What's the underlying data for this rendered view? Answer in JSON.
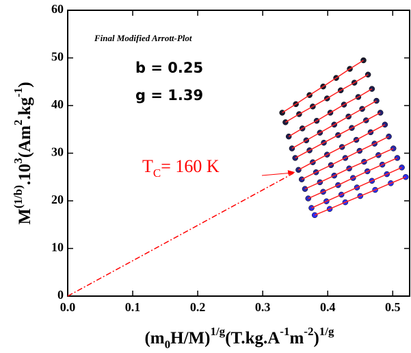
{
  "chart_data": {
    "type": "scatter",
    "title": "Final Modified Arrott-Plot",
    "annotations": [
      "b = 0.25",
      "g = 1.39"
    ],
    "xlabel": [
      {
        "text": "(m"
      },
      {
        "text": "0",
        "sub": true
      },
      {
        "text": "H/M)"
      },
      {
        "text": "1/g",
        "sup": true
      },
      {
        "text": "(T.kg.A"
      },
      {
        "text": "-1",
        "sup": true
      },
      {
        "text": "m"
      },
      {
        "text": "-2",
        "sup": true
      },
      {
        "text": ")"
      },
      {
        "text": "1/g",
        "sup": true
      }
    ],
    "ylabel": [
      {
        "text": "M"
      },
      {
        "text": "(1/b)",
        "sup": true
      },
      {
        "text": ".10"
      },
      {
        "text": "3",
        "sup": true
      },
      {
        "text": "(Am"
      },
      {
        "text": "2",
        "sup": true
      },
      {
        "text": ".kg"
      },
      {
        "text": "-1",
        "sup": true
      },
      {
        "text": ")"
      }
    ],
    "xlim": [
      0,
      0.526
    ],
    "ylim": [
      0,
      60
    ],
    "xticks": [
      {
        "value": 0,
        "label": "0.0"
      },
      0.1,
      0.2,
      0.3,
      0.4,
      0.5
    ],
    "yticks": [
      0,
      10,
      20,
      30,
      40,
      50,
      60
    ],
    "fit_color": "#ff2020",
    "extrapolation": {
      "x": [
        0,
        0.35
      ],
      "y": [
        0,
        26
      ],
      "color": "#ff0000",
      "label": [
        {
          "text": "T"
        },
        {
          "text": "C",
          "sub": true
        },
        {
          "text": "= 160 K"
        }
      ]
    },
    "series": [
      {
        "color": "#1a1a2e",
        "x": [
          0.33,
          0.351,
          0.372,
          0.393,
          0.413,
          0.434,
          0.455
        ],
        "values": [
          38.5,
          40.3,
          42.2,
          44.0,
          45.8,
          47.7,
          49.5
        ]
      },
      {
        "color": "#1c1c3c",
        "x": [
          0.335,
          0.356,
          0.377,
          0.399,
          0.42,
          0.441,
          0.462
        ],
        "values": [
          36.5,
          38.2,
          39.8,
          41.5,
          43.2,
          44.8,
          46.5
        ]
      },
      {
        "color": "#1e1e4c",
        "x": [
          0.34,
          0.361,
          0.383,
          0.404,
          0.425,
          0.447,
          0.468
        ],
        "values": [
          33.5,
          35.2,
          36.8,
          38.5,
          40.2,
          41.8,
          43.5
        ]
      },
      {
        "color": "#20205c",
        "x": [
          0.345,
          0.367,
          0.388,
          0.41,
          0.432,
          0.453,
          0.475
        ],
        "values": [
          31,
          32.7,
          34.3,
          36,
          37.7,
          39.3,
          41
        ]
      },
      {
        "color": "#22226e",
        "x": [
          0.35,
          0.372,
          0.394,
          0.416,
          0.437,
          0.459,
          0.481
        ],
        "values": [
          29,
          30.6,
          32.2,
          33.8,
          35.3,
          36.9,
          38.5
        ]
      },
      {
        "color": "#242480",
        "x": [
          0.355,
          0.377,
          0.399,
          0.422,
          0.444,
          0.466,
          0.488
        ],
        "values": [
          26.5,
          28.1,
          29.7,
          31.3,
          32.8,
          34.4,
          36
        ]
      },
      {
        "color": "#262694",
        "x": [
          0.36,
          0.382,
          0.405,
          0.427,
          0.449,
          0.472,
          0.494
        ],
        "values": [
          24.5,
          26,
          27.5,
          29,
          30.5,
          32,
          33.5
        ]
      },
      {
        "color": "#2828aa",
        "x": [
          0.365,
          0.388,
          0.41,
          0.433,
          0.456,
          0.478,
          0.501
        ],
        "values": [
          22.5,
          23.9,
          25.3,
          26.8,
          28.2,
          29.6,
          31
        ]
      },
      {
        "color": "#2a2ac0",
        "x": [
          0.37,
          0.393,
          0.416,
          0.439,
          0.461,
          0.484,
          0.507
        ],
        "values": [
          20.5,
          21.9,
          23.3,
          24.8,
          26.2,
          27.6,
          29
        ]
      },
      {
        "color": "#2c2cd8",
        "x": [
          0.375,
          0.398,
          0.421,
          0.445,
          0.468,
          0.491,
          0.514
        ],
        "values": [
          18.5,
          19.9,
          21.3,
          22.8,
          24.2,
          25.6,
          27
        ]
      },
      {
        "color": "#2e2ef0",
        "x": [
          0.38,
          0.403,
          0.427,
          0.45,
          0.473,
          0.497,
          0.52
        ],
        "values": [
          17,
          18.3,
          19.7,
          21,
          22.3,
          23.7,
          25
        ]
      }
    ]
  }
}
